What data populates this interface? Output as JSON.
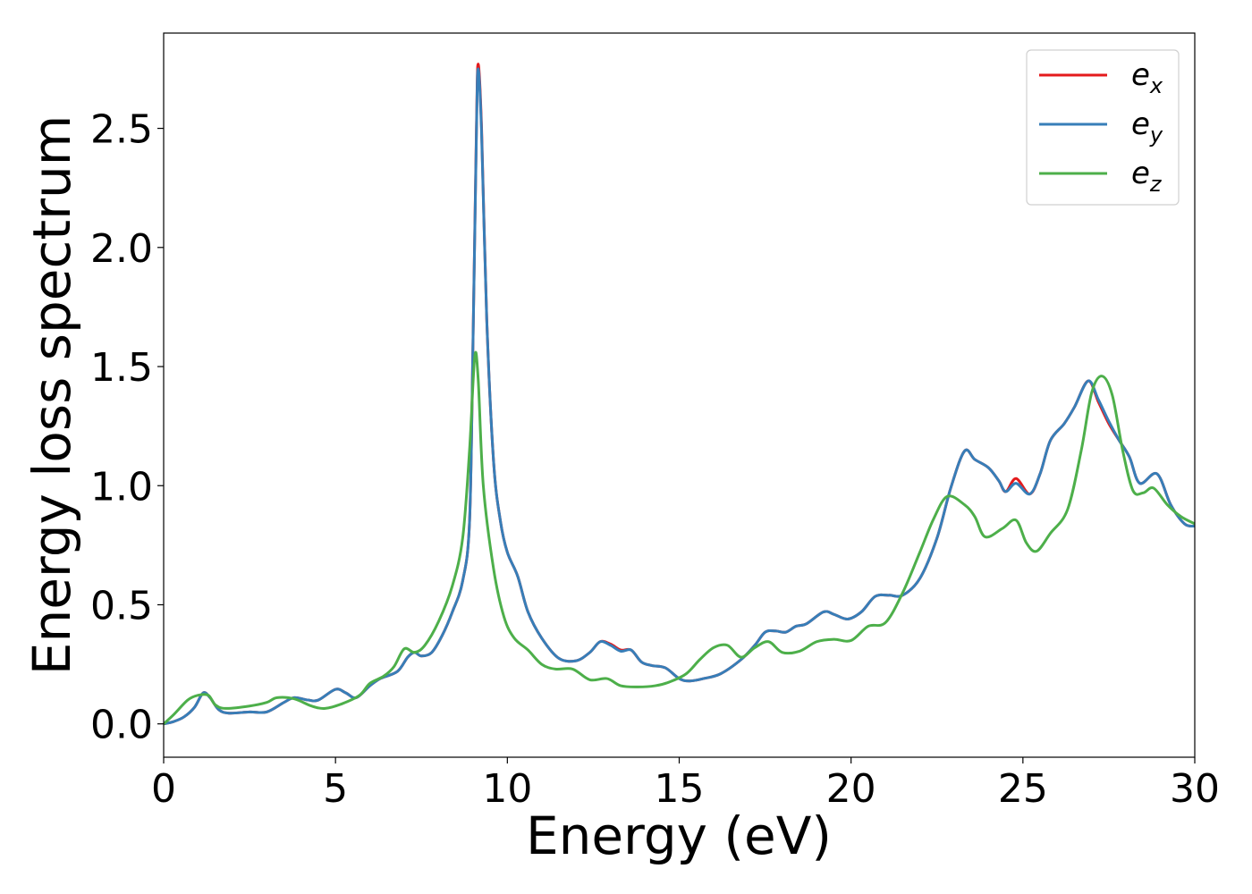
{
  "chart_data": {
    "type": "line",
    "title": "",
    "xlabel": "Energy (eV)",
    "ylabel": "Energy loss spectrum",
    "xlim": [
      0,
      30
    ],
    "ylim": [
      -0.14,
      2.9
    ],
    "x_ticks": [
      0,
      5,
      10,
      15,
      20,
      25,
      30
    ],
    "x_tick_labels": [
      "0",
      "5",
      "10",
      "15",
      "20",
      "25",
      "30"
    ],
    "y_ticks": [
      0.0,
      0.5,
      1.0,
      1.5,
      2.0,
      2.5
    ],
    "y_tick_labels": [
      "0.0",
      "0.5",
      "1.0",
      "1.5",
      "2.0",
      "2.5"
    ],
    "grid": false,
    "legend_position": "top-right",
    "series": [
      {
        "name": "e_x",
        "label_base": "e",
        "label_sub": "x",
        "color": "#e41a1c",
        "points": [
          [
            0,
            0
          ],
          [
            0.3,
            0.01
          ],
          [
            0.6,
            0.03
          ],
          [
            0.9,
            0.07
          ],
          [
            1.15,
            0.13
          ],
          [
            1.35,
            0.11
          ],
          [
            1.6,
            0.06
          ],
          [
            1.9,
            0.045
          ],
          [
            2.5,
            0.05
          ],
          [
            3.0,
            0.05
          ],
          [
            3.5,
            0.09
          ],
          [
            3.8,
            0.11
          ],
          [
            4.2,
            0.1
          ],
          [
            4.5,
            0.1
          ],
          [
            5.0,
            0.145
          ],
          [
            5.3,
            0.13
          ],
          [
            5.6,
            0.11
          ],
          [
            6.0,
            0.16
          ],
          [
            6.3,
            0.19
          ],
          [
            6.8,
            0.22
          ],
          [
            7.1,
            0.28
          ],
          [
            7.3,
            0.3
          ],
          [
            7.5,
            0.285
          ],
          [
            7.8,
            0.3
          ],
          [
            8.1,
            0.37
          ],
          [
            8.4,
            0.47
          ],
          [
            8.7,
            0.6
          ],
          [
            8.9,
            0.85
          ],
          [
            9.0,
            1.6
          ],
          [
            9.1,
            2.5
          ],
          [
            9.15,
            2.77
          ],
          [
            9.25,
            2.5
          ],
          [
            9.4,
            1.7
          ],
          [
            9.6,
            1.1
          ],
          [
            9.8,
            0.85
          ],
          [
            10.0,
            0.72
          ],
          [
            10.3,
            0.62
          ],
          [
            10.6,
            0.47
          ],
          [
            11.0,
            0.36
          ],
          [
            11.5,
            0.275
          ],
          [
            12.0,
            0.265
          ],
          [
            12.4,
            0.3
          ],
          [
            12.7,
            0.345
          ],
          [
            13.0,
            0.335
          ],
          [
            13.3,
            0.31
          ],
          [
            13.6,
            0.31
          ],
          [
            13.9,
            0.26
          ],
          [
            14.2,
            0.245
          ],
          [
            14.6,
            0.235
          ],
          [
            15.0,
            0.19
          ],
          [
            15.3,
            0.18
          ],
          [
            15.7,
            0.19
          ],
          [
            16.2,
            0.21
          ],
          [
            16.8,
            0.27
          ],
          [
            17.2,
            0.33
          ],
          [
            17.5,
            0.385
          ],
          [
            17.8,
            0.39
          ],
          [
            18.1,
            0.385
          ],
          [
            18.4,
            0.41
          ],
          [
            18.7,
            0.42
          ],
          [
            19.2,
            0.47
          ],
          [
            19.5,
            0.46
          ],
          [
            19.9,
            0.44
          ],
          [
            20.3,
            0.47
          ],
          [
            20.7,
            0.535
          ],
          [
            21.1,
            0.54
          ],
          [
            21.5,
            0.54
          ],
          [
            22.0,
            0.61
          ],
          [
            22.5,
            0.78
          ],
          [
            22.9,
            0.99
          ],
          [
            23.3,
            1.145
          ],
          [
            23.6,
            1.11
          ],
          [
            24.0,
            1.075
          ],
          [
            24.3,
            1.02
          ],
          [
            24.5,
            0.975
          ],
          [
            24.8,
            1.03
          ],
          [
            25.2,
            0.965
          ],
          [
            25.5,
            1.05
          ],
          [
            25.8,
            1.19
          ],
          [
            26.2,
            1.26
          ],
          [
            26.5,
            1.33
          ],
          [
            26.9,
            1.44
          ],
          [
            27.2,
            1.35
          ],
          [
            27.5,
            1.26
          ],
          [
            27.8,
            1.19
          ],
          [
            28.1,
            1.12
          ],
          [
            28.4,
            1.01
          ],
          [
            28.9,
            1.05
          ],
          [
            29.3,
            0.92
          ],
          [
            29.7,
            0.84
          ],
          [
            30.0,
            0.83
          ]
        ]
      },
      {
        "name": "e_y",
        "label_base": "e",
        "label_sub": "y",
        "color": "#377eb8",
        "points": [
          [
            0,
            0
          ],
          [
            0.3,
            0.01
          ],
          [
            0.6,
            0.03
          ],
          [
            0.9,
            0.07
          ],
          [
            1.15,
            0.13
          ],
          [
            1.35,
            0.11
          ],
          [
            1.6,
            0.06
          ],
          [
            1.9,
            0.045
          ],
          [
            2.5,
            0.05
          ],
          [
            3.0,
            0.05
          ],
          [
            3.5,
            0.09
          ],
          [
            3.8,
            0.11
          ],
          [
            4.2,
            0.1
          ],
          [
            4.5,
            0.1
          ],
          [
            5.0,
            0.145
          ],
          [
            5.3,
            0.13
          ],
          [
            5.6,
            0.11
          ],
          [
            6.0,
            0.16
          ],
          [
            6.3,
            0.19
          ],
          [
            6.8,
            0.22
          ],
          [
            7.1,
            0.28
          ],
          [
            7.3,
            0.3
          ],
          [
            7.5,
            0.285
          ],
          [
            7.8,
            0.3
          ],
          [
            8.1,
            0.37
          ],
          [
            8.4,
            0.47
          ],
          [
            8.7,
            0.6
          ],
          [
            8.9,
            0.85
          ],
          [
            9.0,
            1.6
          ],
          [
            9.1,
            2.48
          ],
          [
            9.15,
            2.75
          ],
          [
            9.25,
            2.48
          ],
          [
            9.4,
            1.7
          ],
          [
            9.6,
            1.1
          ],
          [
            9.8,
            0.85
          ],
          [
            10.0,
            0.72
          ],
          [
            10.3,
            0.62
          ],
          [
            10.6,
            0.47
          ],
          [
            11.0,
            0.36
          ],
          [
            11.5,
            0.275
          ],
          [
            12.0,
            0.265
          ],
          [
            12.4,
            0.3
          ],
          [
            12.7,
            0.345
          ],
          [
            13.0,
            0.33
          ],
          [
            13.3,
            0.305
          ],
          [
            13.6,
            0.31
          ],
          [
            13.9,
            0.26
          ],
          [
            14.2,
            0.245
          ],
          [
            14.6,
            0.235
          ],
          [
            15.0,
            0.19
          ],
          [
            15.3,
            0.18
          ],
          [
            15.7,
            0.19
          ],
          [
            16.2,
            0.21
          ],
          [
            16.8,
            0.27
          ],
          [
            17.2,
            0.33
          ],
          [
            17.5,
            0.385
          ],
          [
            17.8,
            0.39
          ],
          [
            18.1,
            0.385
          ],
          [
            18.4,
            0.41
          ],
          [
            18.7,
            0.42
          ],
          [
            19.2,
            0.47
          ],
          [
            19.5,
            0.46
          ],
          [
            19.9,
            0.44
          ],
          [
            20.3,
            0.47
          ],
          [
            20.7,
            0.535
          ],
          [
            21.1,
            0.54
          ],
          [
            21.5,
            0.54
          ],
          [
            22.0,
            0.61
          ],
          [
            22.5,
            0.78
          ],
          [
            22.9,
            0.99
          ],
          [
            23.3,
            1.145
          ],
          [
            23.6,
            1.11
          ],
          [
            24.0,
            1.075
          ],
          [
            24.3,
            1.02
          ],
          [
            24.5,
            0.975
          ],
          [
            24.8,
            1.01
          ],
          [
            25.2,
            0.965
          ],
          [
            25.5,
            1.05
          ],
          [
            25.8,
            1.19
          ],
          [
            26.2,
            1.26
          ],
          [
            26.5,
            1.33
          ],
          [
            26.9,
            1.44
          ],
          [
            27.2,
            1.36
          ],
          [
            27.5,
            1.27
          ],
          [
            27.8,
            1.19
          ],
          [
            28.1,
            1.12
          ],
          [
            28.4,
            1.01
          ],
          [
            28.9,
            1.05
          ],
          [
            29.3,
            0.92
          ],
          [
            29.7,
            0.84
          ],
          [
            30.0,
            0.83
          ]
        ]
      },
      {
        "name": "e_z",
        "label_base": "e",
        "label_sub": "z",
        "color": "#4daf4a",
        "points": [
          [
            0,
            0
          ],
          [
            0.3,
            0.04
          ],
          [
            0.7,
            0.1
          ],
          [
            1.0,
            0.12
          ],
          [
            1.3,
            0.12
          ],
          [
            1.5,
            0.08
          ],
          [
            1.8,
            0.065
          ],
          [
            2.5,
            0.075
          ],
          [
            3.0,
            0.09
          ],
          [
            3.3,
            0.11
          ],
          [
            3.8,
            0.105
          ],
          [
            4.3,
            0.075
          ],
          [
            4.7,
            0.065
          ],
          [
            5.2,
            0.085
          ],
          [
            5.7,
            0.12
          ],
          [
            6.0,
            0.17
          ],
          [
            6.4,
            0.2
          ],
          [
            6.7,
            0.24
          ],
          [
            7.0,
            0.315
          ],
          [
            7.3,
            0.3
          ],
          [
            7.6,
            0.33
          ],
          [
            8.0,
            0.43
          ],
          [
            8.4,
            0.58
          ],
          [
            8.7,
            0.78
          ],
          [
            8.9,
            1.15
          ],
          [
            9.05,
            1.54
          ],
          [
            9.15,
            1.45
          ],
          [
            9.3,
            1.0
          ],
          [
            9.6,
            0.65
          ],
          [
            9.9,
            0.45
          ],
          [
            10.2,
            0.36
          ],
          [
            10.6,
            0.31
          ],
          [
            11.0,
            0.25
          ],
          [
            11.4,
            0.23
          ],
          [
            11.9,
            0.23
          ],
          [
            12.4,
            0.185
          ],
          [
            12.9,
            0.19
          ],
          [
            13.3,
            0.16
          ],
          [
            13.8,
            0.155
          ],
          [
            14.3,
            0.16
          ],
          [
            14.7,
            0.175
          ],
          [
            15.2,
            0.21
          ],
          [
            15.6,
            0.27
          ],
          [
            16.0,
            0.32
          ],
          [
            16.4,
            0.33
          ],
          [
            16.8,
            0.28
          ],
          [
            17.2,
            0.32
          ],
          [
            17.6,
            0.345
          ],
          [
            18.0,
            0.3
          ],
          [
            18.5,
            0.305
          ],
          [
            19.0,
            0.345
          ],
          [
            19.5,
            0.355
          ],
          [
            20.0,
            0.35
          ],
          [
            20.5,
            0.41
          ],
          [
            21.0,
            0.425
          ],
          [
            21.5,
            0.55
          ],
          [
            22.0,
            0.72
          ],
          [
            22.4,
            0.86
          ],
          [
            22.8,
            0.955
          ],
          [
            23.3,
            0.92
          ],
          [
            23.6,
            0.87
          ],
          [
            23.9,
            0.785
          ],
          [
            24.4,
            0.82
          ],
          [
            24.8,
            0.855
          ],
          [
            25.1,
            0.76
          ],
          [
            25.4,
            0.725
          ],
          [
            25.8,
            0.8
          ],
          [
            26.3,
            0.9
          ],
          [
            26.7,
            1.15
          ],
          [
            27.0,
            1.39
          ],
          [
            27.3,
            1.46
          ],
          [
            27.6,
            1.38
          ],
          [
            27.9,
            1.15
          ],
          [
            28.2,
            0.98
          ],
          [
            28.5,
            0.97
          ],
          [
            28.8,
            0.99
          ],
          [
            29.2,
            0.92
          ],
          [
            29.6,
            0.87
          ],
          [
            30.0,
            0.84
          ]
        ]
      }
    ]
  }
}
